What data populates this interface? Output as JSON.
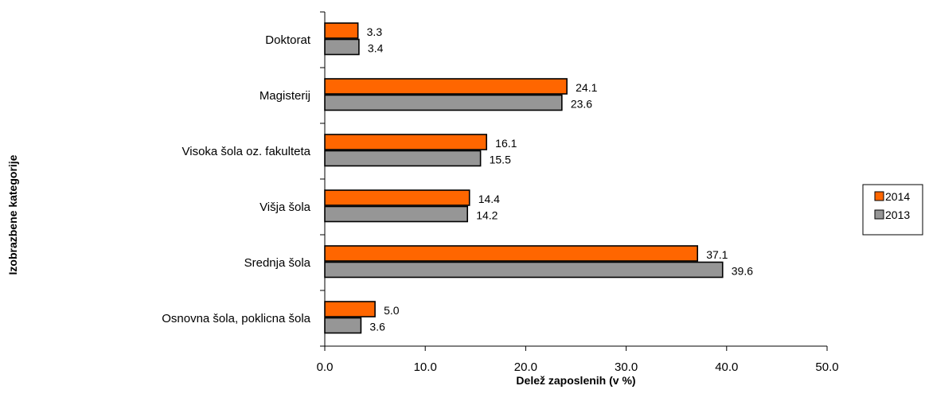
{
  "chart_data": {
    "type": "bar",
    "orientation": "horizontal",
    "categories": [
      "Doktorat",
      "Magisterij",
      "Visoka šola oz. fakulteta",
      "Višja šola",
      "Srednja šola",
      "Osnovna šola, poklicna šola"
    ],
    "series": [
      {
        "name": "2014",
        "color": "#ff6600",
        "values": [
          3.3,
          24.1,
          16.1,
          14.4,
          37.1,
          5.0
        ],
        "labels": [
          "3.3",
          "24.1",
          "16.1",
          "14.4",
          "37.1",
          "5.0"
        ]
      },
      {
        "name": "2013",
        "color": "#969696",
        "values": [
          3.4,
          23.6,
          15.5,
          14.2,
          39.6,
          3.6
        ],
        "labels": [
          "3.4",
          "23.6",
          "15.5",
          "14.2",
          "39.6",
          "3.6"
        ]
      }
    ],
    "xlabel": "Delež zaposlenih (v %)",
    "ylabel": "Izobrazbene kategorije",
    "xlim": [
      0,
      50
    ],
    "xticks": [
      0,
      10,
      20,
      30,
      40,
      50
    ],
    "xtick_labels": [
      "0.0",
      "10.0",
      "20.0",
      "30.0",
      "40.0",
      "50.0"
    ],
    "grid": false,
    "legend_position": "right"
  }
}
